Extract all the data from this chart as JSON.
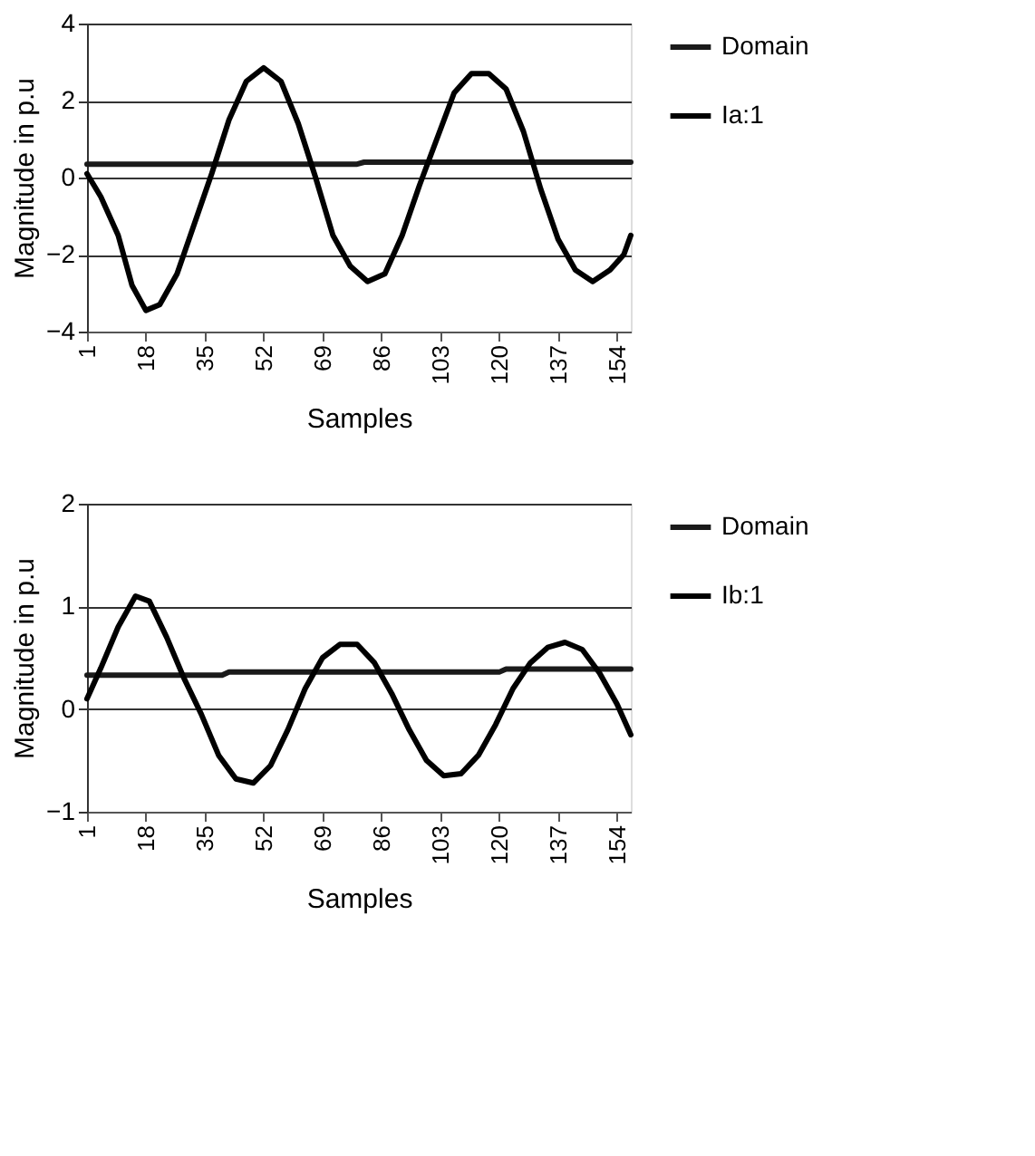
{
  "chart_data": [
    {
      "type": "line",
      "xlabel": "Samples",
      "ylabel": "Magnitude in p.u",
      "xlim": [
        1,
        158
      ],
      "xticks": [
        1,
        18,
        35,
        52,
        69,
        86,
        103,
        120,
        137,
        154
      ],
      "ylim": [
        -4,
        4
      ],
      "yticks": [
        -4,
        -2,
        0,
        2,
        4
      ],
      "grid": "y",
      "legend": "right",
      "marker": "none",
      "line_style": "solid",
      "series": [
        {
          "name": "Domain",
          "color": "#1a1a1a",
          "x": [
            1,
            79,
            81,
            158
          ],
          "values": [
            0.35,
            0.35,
            0.4,
            0.4
          ]
        },
        {
          "name": "Ia:1",
          "color": "#000000",
          "x": [
            1,
            5,
            10,
            14,
            18,
            22,
            27,
            32,
            37,
            42,
            47,
            52,
            57,
            62,
            67,
            72,
            77,
            82,
            87,
            92,
            97,
            102,
            107,
            112,
            117,
            122,
            127,
            132,
            137,
            142,
            147,
            152,
            156,
            158
          ],
          "values": [
            0.1,
            -0.5,
            -1.5,
            -2.8,
            -3.45,
            -3.3,
            -2.5,
            -1.2,
            0.1,
            1.5,
            2.5,
            2.85,
            2.5,
            1.4,
            0.0,
            -1.5,
            -2.3,
            -2.7,
            -2.5,
            -1.5,
            -0.2,
            1.0,
            2.2,
            2.7,
            2.7,
            2.3,
            1.2,
            -0.3,
            -1.6,
            -2.4,
            -2.7,
            -2.4,
            -2.0,
            -1.5
          ]
        }
      ]
    },
    {
      "type": "line",
      "xlabel": "Samples",
      "ylabel": "Magnitude in p.u",
      "xlim": [
        1,
        158
      ],
      "xticks": [
        1,
        18,
        35,
        52,
        69,
        86,
        103,
        120,
        137,
        154
      ],
      "ylim": [
        -1,
        2
      ],
      "yticks": [
        -1,
        0,
        1,
        2
      ],
      "grid": "y",
      "legend": "right",
      "marker": "none",
      "line_style": "solid",
      "series": [
        {
          "name": "Domain",
          "color": "#1a1a1a",
          "x": [
            1,
            40,
            42,
            120,
            122,
            158
          ],
          "values": [
            0.33,
            0.33,
            0.36,
            0.36,
            0.39,
            0.39
          ]
        },
        {
          "name": "Ib:1",
          "color": "#000000",
          "x": [
            1,
            5,
            10,
            15,
            19,
            24,
            29,
            34,
            39,
            44,
            49,
            54,
            59,
            64,
            69,
            74,
            79,
            84,
            89,
            94,
            99,
            104,
            109,
            114,
            119,
            124,
            129,
            134,
            139,
            144,
            149,
            154,
            158
          ],
          "values": [
            0.1,
            0.4,
            0.8,
            1.1,
            1.05,
            0.7,
            0.3,
            -0.05,
            -0.45,
            -0.68,
            -0.72,
            -0.55,
            -0.2,
            0.2,
            0.5,
            0.63,
            0.63,
            0.45,
            0.15,
            -0.2,
            -0.5,
            -0.65,
            -0.63,
            -0.45,
            -0.15,
            0.2,
            0.45,
            0.6,
            0.65,
            0.58,
            0.35,
            0.05,
            -0.25
          ]
        }
      ]
    }
  ]
}
